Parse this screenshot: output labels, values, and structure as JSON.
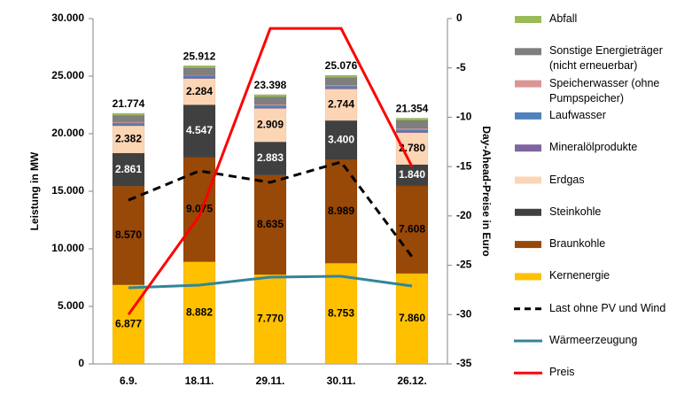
{
  "chart_data": {
    "type": "bar",
    "stacked": true,
    "y_label": "Leistung in MW",
    "y2_label": "Day-Ahead-Preise in Euro",
    "categories": [
      "6.9.",
      "18.11.",
      "29.11.",
      "30.11.",
      "26.12."
    ],
    "ylim": [
      0,
      30000
    ],
    "yticks": [
      0,
      {
        "value": 5000,
        "label": "5.000"
      },
      {
        "value": 10000,
        "label": "10.000"
      },
      {
        "value": 15000,
        "label": "15.000"
      },
      {
        "value": 20000,
        "label": "20.000"
      },
      {
        "value": 25000,
        "label": "25.000"
      },
      {
        "value": 30000,
        "label": "30.000"
      }
    ],
    "y2lim": [
      -35,
      0
    ],
    "y2ticks": [
      -35,
      -30,
      -25,
      -20,
      -15,
      -10,
      -5,
      0
    ],
    "grid": false,
    "series": [
      {
        "name": "Kernenergie",
        "color": "#ffc000",
        "values": [
          6877,
          8882,
          7770,
          8753,
          7860
        ],
        "value_labels": [
          "6.877",
          "8.882",
          "7.770",
          "8.753",
          "7.860"
        ],
        "label_color": "#000000"
      },
      {
        "name": "Braunkohle",
        "color": "#984807",
        "values": [
          8570,
          9075,
          8635,
          8989,
          7608
        ],
        "value_labels": [
          "8.570",
          "9.075",
          "8.635",
          "8.989",
          "7.608"
        ],
        "label_color": "#000000"
      },
      {
        "name": "Steinkohle",
        "color": "#404040",
        "values": [
          2861,
          4547,
          2883,
          3400,
          1840
        ],
        "value_labels": [
          "2.861",
          "4.547",
          "2.883",
          "3.400",
          "1.840"
        ],
        "label_color": "#ffffff"
      },
      {
        "name": "Erdgas",
        "color": "#fcd5b5",
        "values": [
          2382,
          2284,
          2909,
          2744,
          2780
        ],
        "value_labels": [
          "2.382",
          "2.284",
          "2.909",
          "2.744",
          "2.780"
        ],
        "label_color": "#000000"
      },
      {
        "name": "Mineralölprodukte",
        "color": "#8064a2",
        "values": [
          100,
          100,
          100,
          100,
          100
        ]
      },
      {
        "name": "Laufwasser",
        "color": "#4f81bd",
        "values": [
          150,
          150,
          150,
          150,
          150
        ]
      },
      {
        "name": "Speicherwasser (ohne Pumpspeicher)",
        "color": "#d99694",
        "values": [
          84,
          74,
          101,
          90,
          116
        ]
      },
      {
        "name": "Sonstige Energieträger (nicht erneuerbar)",
        "color": "#7f7f7f",
        "values": [
          550,
          600,
          650,
          650,
          700
        ]
      },
      {
        "name": "Abfall",
        "color": "#9bbb59",
        "values": [
          200,
          200,
          200,
          200,
          200
        ]
      },
      {
        "name": "Last ohne PV und Wind",
        "type": "line",
        "dashed": true,
        "color": "#000000",
        "values": [
          14230,
          16770,
          15770,
          17540,
          9310
        ]
      },
      {
        "name": "Wärmeerzeugung",
        "type": "line",
        "color": "#31859c",
        "values": [
          6615,
          6850,
          7540,
          7615,
          6770
        ]
      },
      {
        "name": "Preis",
        "type": "line",
        "axis": "y2",
        "color": "#ff0000",
        "values": [
          -30,
          -20,
          -1,
          -1,
          -15
        ]
      }
    ],
    "totals": {
      "values": [
        21774,
        25912,
        23398,
        25076,
        21354
      ],
      "value_labels": [
        "21.774",
        "25.912",
        "23.398",
        "25.076",
        "21.354"
      ]
    },
    "legend_position": "right"
  }
}
